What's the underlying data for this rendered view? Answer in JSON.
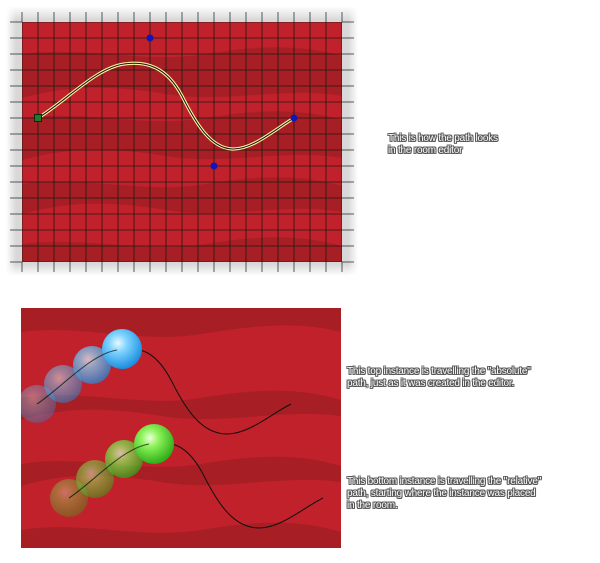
{
  "captions": {
    "editor": {
      "line1": "This is how the path looks",
      "line2": "in the room editor"
    },
    "absolute": {
      "line1": "This top instance is travelling the \"absolute\"",
      "line2": "path, just as it was created in the editor."
    },
    "relative": {
      "line1": "This bottom instance is travelling the \"relative\"",
      "line2": "path, starting where the instance was placed",
      "line3": "in the room."
    }
  },
  "colors": {
    "room_background": "#c0212a",
    "room_wave_dark": "#a81e25",
    "grid_line": "#1a1a1a",
    "path_line": "#111111",
    "path_highlight": "#fff4a0",
    "start_point": "#1f7a2e",
    "control_point": "#1414b4",
    "top_instance": "#3fb6ff",
    "bottom_instance": "#55e23a"
  },
  "editor": {
    "path_start_icon": "square-start-point-icon",
    "control_point_icon": "blue-dot-control-point-icon"
  },
  "instances": {
    "top": {
      "icon": "blue-sphere-icon",
      "trail_count": 4
    },
    "bottom": {
      "icon": "green-sphere-icon",
      "trail_count": 4
    }
  }
}
